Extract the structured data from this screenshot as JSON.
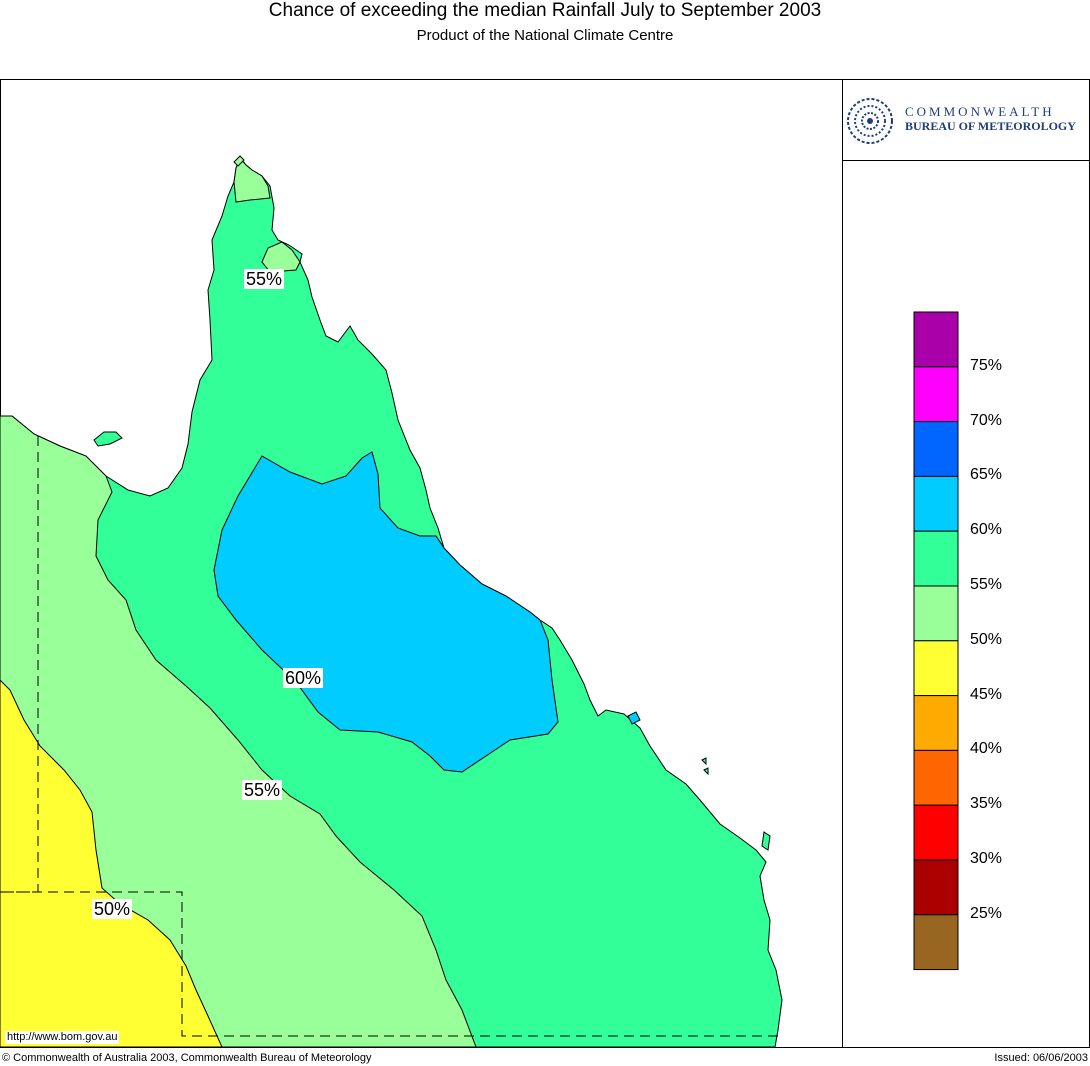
{
  "header": {
    "title": "Chance of exceeding the median Rainfall July to September 2003",
    "subtitle": "Product of the National Climate Centre"
  },
  "logo": {
    "line1": "COMMONWEALTH",
    "line2": "BUREAU OF METEOROLOGY",
    "icon": "bom-swirl-icon",
    "color": "#1f3d7a"
  },
  "map": {
    "region": "Queensland",
    "contour_labels": [
      "55%",
      "60%",
      "55%",
      "50%"
    ],
    "url": "http://www.bom.gov.au",
    "zone_colors": {
      "45-50": "#ffff33",
      "50-55": "#99ff99",
      "55-60": "#33ff99",
      "60-65": "#00ccff"
    }
  },
  "legend": {
    "swatches": [
      "#aa00aa",
      "#ff00ff",
      "#0066ff",
      "#00ccff",
      "#33ff99",
      "#99ff99",
      "#ffff33",
      "#ffaa00",
      "#ff6600",
      "#ff0000",
      "#aa0000",
      "#996622"
    ],
    "labels": [
      "75%",
      "70%",
      "65%",
      "60%",
      "55%",
      "50%",
      "45%",
      "40%",
      "35%",
      "30%",
      "25%"
    ]
  },
  "footer": {
    "copyright": "© Commonwealth of Australia 2003, Commonwealth Bureau of Meteorology",
    "issued": "Issued: 06/06/2003"
  }
}
